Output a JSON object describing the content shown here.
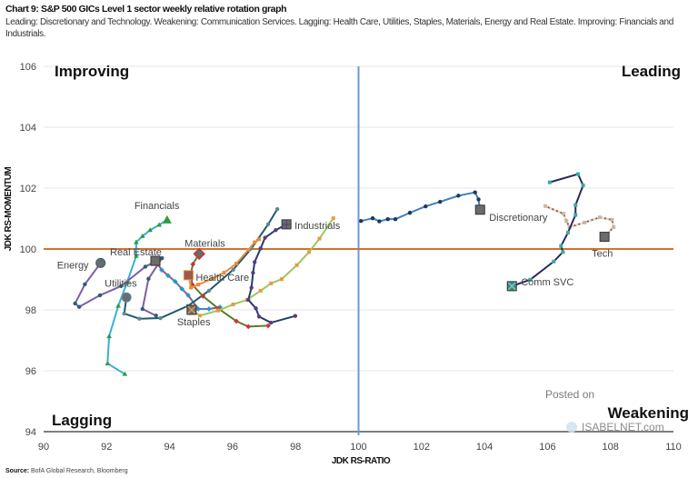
{
  "header": {
    "title": "Chart 9: S&P 500 GICs Level 1 sector weekly relative rotation graph",
    "subtitle": "Leading: Discretionary and Technology. Weakening: Communication Services. Lagging: Health Care, Utilities, Staples, Materials, Energy and Real Estate. Improving: Financials and Industrials."
  },
  "source": {
    "label": "Source:",
    "text": "BofA Global Research, Bloomberg"
  },
  "watermark": {
    "line1": "Posted on",
    "line2": "ISABELNET.com"
  },
  "chart_data": {
    "type": "scatter",
    "subtype": "relative rotation graph (tails)",
    "xlabel": "JDK RS-RATIO",
    "ylabel": "JDK RS-MOMENTUM",
    "xlim": [
      90,
      110
    ],
    "ylim": [
      94,
      106
    ],
    "x_ticks": [
      "90",
      "92",
      "94",
      "96",
      "98",
      "100",
      "102",
      "104",
      "106",
      "108",
      "110"
    ],
    "y_ticks": [
      "94",
      "96",
      "98",
      "100",
      "102",
      "104",
      "106"
    ],
    "grid": "horizontal",
    "reference_lines": {
      "x": 100,
      "y": 100,
      "x_color": "#6b9bd2",
      "y_color": "#d2732f"
    },
    "quadrants": {
      "top_left": "Improving",
      "top_right": "Leading",
      "bottom_left": "Lagging",
      "bottom_right": "Weakening"
    },
    "series": [
      {
        "name": "Financials",
        "line": "#35b2d3",
        "marker": "#2e9b3c",
        "x": [
          92.58,
          92.03,
          92.08,
          92.37,
          92.66,
          92.94,
          92.94,
          93.14,
          93.38,
          93.67,
          93.92
        ],
        "y": [
          95.89,
          96.24,
          97.13,
          98.13,
          98.93,
          99.77,
          100.22,
          100.42,
          100.62,
          100.79,
          100.96
        ]
      },
      {
        "name": "Energy",
        "line": "#7d5fa8",
        "marker": "#2f5f70",
        "x": [
          93.57,
          93.14,
          93.33,
          93.76,
          93.23,
          92.46,
          91.79,
          91.13,
          91.0,
          91.31,
          91.81
        ],
        "y": [
          97.81,
          98.03,
          99.02,
          99.7,
          99.42,
          98.78,
          98.48,
          98.1,
          98.21,
          98.84,
          99.54
        ]
      },
      {
        "name": "Real Estate",
        "line": "#d0464b",
        "marker": "#2b93d1",
        "x": [
          95.6,
          95.25,
          94.91,
          94.59,
          94.39,
          94.18,
          93.95,
          93.75,
          93.55
        ],
        "y": [
          98.09,
          98.03,
          98.03,
          98.48,
          98.69,
          98.93,
          99.13,
          99.31,
          99.61
        ]
      },
      {
        "name": "Utilities",
        "line": "#1f5a6b",
        "marker": "#5b8a99",
        "x": [
          97.42,
          97.13,
          96.6,
          96.02,
          95.25,
          94.58,
          93.71,
          93.04,
          92.56,
          92.63
        ],
        "y": [
          101.31,
          100.81,
          100.02,
          99.32,
          98.63,
          98.13,
          97.73,
          97.71,
          97.88,
          98.41
        ]
      },
      {
        "name": "Materials",
        "line": "#5d7d2f",
        "marker": "#c8323c",
        "x": [
          97.13,
          96.5,
          96.12,
          95.54,
          95.06,
          94.72,
          94.68,
          94.74,
          94.94
        ],
        "y": [
          97.48,
          97.45,
          97.63,
          98.05,
          98.45,
          98.83,
          99.22,
          99.5,
          99.84
        ]
      },
      {
        "name": "Health Care",
        "line": "#ea8a3c",
        "marker": "#ea8a3c",
        "x": [
          96.84,
          96.7,
          96.5,
          96.12,
          95.73,
          95.35,
          94.91,
          94.68,
          94.6
        ],
        "y": [
          100.32,
          100.22,
          99.97,
          99.52,
          99.22,
          99.02,
          98.83,
          98.73,
          99.14
        ]
      },
      {
        "name": "Staples",
        "line": "#9cc75b",
        "marker": "#e59a45",
        "x": [
          99.2,
          98.76,
          98.43,
          98.04,
          97.56,
          97.22,
          96.89,
          96.46,
          96.02,
          95.54,
          94.96,
          94.7
        ],
        "y": [
          101.01,
          100.34,
          99.9,
          99.47,
          99.01,
          98.87,
          98.63,
          98.33,
          98.18,
          97.98,
          97.81,
          98.0
        ]
      },
      {
        "name": "Industrials",
        "line": "#263c6b",
        "marker": "#5c3c7c",
        "x": [
          97.99,
          97.22,
          96.84,
          96.74,
          96.5,
          96.6,
          96.65,
          96.7,
          96.89,
          97.03,
          97.37,
          97.71
        ],
        "y": [
          97.8,
          97.58,
          97.78,
          98.05,
          98.33,
          98.73,
          99.22,
          99.57,
          100.02,
          100.37,
          100.62,
          100.81
        ]
      },
      {
        "name": "Discretionary",
        "line": "#3b82c2",
        "marker": "#24355a",
        "x": [
          100.08,
          100.45,
          100.66,
          100.93,
          101.17,
          101.63,
          102.13,
          102.59,
          103.17,
          103.7,
          103.81,
          103.86
        ],
        "y": [
          100.92,
          101.01,
          100.91,
          100.98,
          100.98,
          101.19,
          101.4,
          101.55,
          101.75,
          101.86,
          101.63,
          101.29
        ]
      },
      {
        "name": "Tech",
        "line": "#8b5c3c",
        "marker": "#c9b7a6",
        "x": [
          105.93,
          106.51,
          106.6,
          106.7,
          107.18,
          107.66,
          108.05,
          108.1,
          107.81
        ],
        "y": [
          101.41,
          101.16,
          100.92,
          100.72,
          100.87,
          101.04,
          100.96,
          100.72,
          100.4
        ]
      },
      {
        "name": "Comm SVC",
        "line": "#2b2b5c",
        "marker": "#3aab9b",
        "x": [
          106.07,
          106.97,
          107.13,
          106.89,
          106.89,
          106.65,
          106.43,
          106.49,
          106.2,
          105.45,
          104.87
        ],
        "y": [
          102.19,
          102.46,
          102.09,
          101.44,
          101.12,
          100.54,
          100.1,
          99.9,
          99.59,
          98.99,
          98.78
        ]
      }
    ]
  }
}
